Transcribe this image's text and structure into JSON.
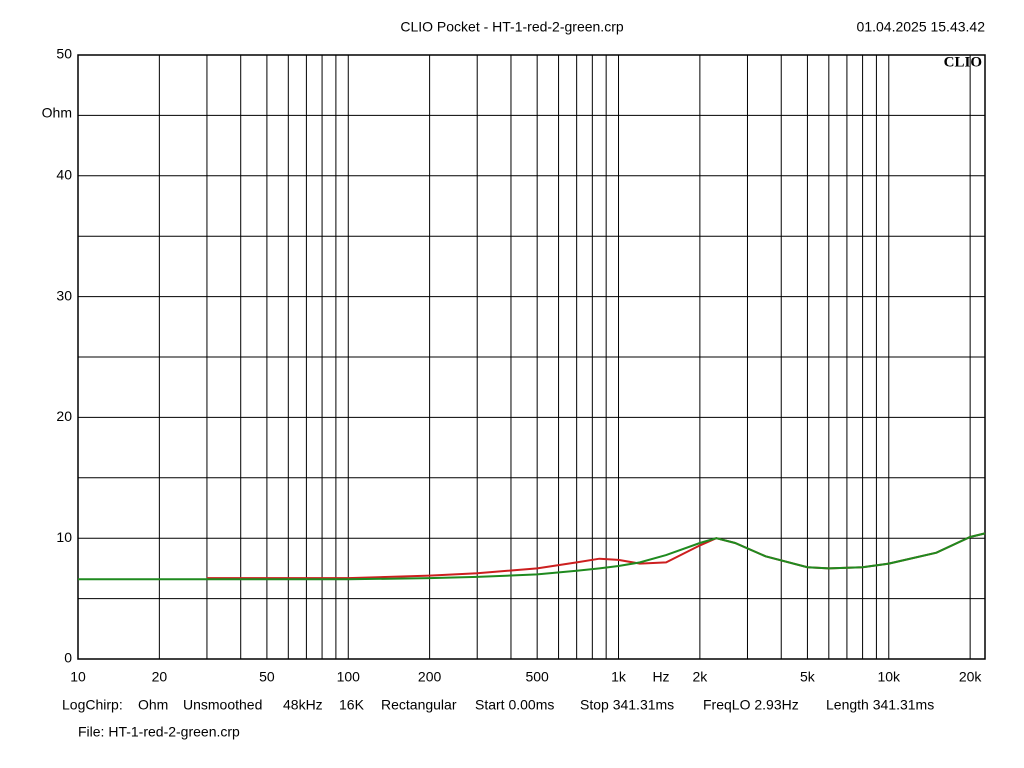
{
  "chart_data": {
    "type": "line",
    "title": "CLIO Pocket - HT-1-red-2-green.crp",
    "timestamp": "01.04.2025 15.43.42",
    "logo": "CLIO",
    "y_label": "Ohm",
    "x_unit": "Hz",
    "x_log": true,
    "grid": true,
    "xlim": [
      10,
      22700
    ],
    "ylim": [
      0,
      50
    ],
    "yticks": [
      0,
      10,
      20,
      30,
      40,
      50
    ],
    "yminor": [
      5,
      15,
      25,
      35,
      45
    ],
    "xticks": [
      10,
      20,
      50,
      100,
      200,
      500,
      {
        "value": 1000,
        "label": "1k"
      },
      {
        "value": 2000,
        "label": "2k"
      },
      {
        "value": 5000,
        "label": "5k"
      },
      {
        "value": 10000,
        "label": "10k"
      },
      {
        "value": 20000,
        "label": "20k"
      }
    ],
    "xminor": [
      30,
      40,
      60,
      70,
      80,
      90,
      300,
      400,
      600,
      700,
      800,
      900,
      3000,
      4000,
      6000,
      7000,
      8000,
      9000
    ],
    "x": [
      10,
      20,
      30,
      50,
      100,
      200,
      300,
      500,
      700,
      850,
      1000,
      1200,
      1500,
      2000,
      2300,
      2700,
      3500,
      5000,
      6000,
      8000,
      10000,
      15000,
      20000,
      22700
    ],
    "series": [
      {
        "name": "HT-1-red",
        "color": "#cc1f1f",
        "values": [
          null,
          null,
          6.7,
          6.7,
          6.7,
          6.9,
          7.1,
          7.5,
          8.0,
          8.3,
          8.2,
          7.9,
          8.0,
          9.4,
          10.0,
          9.6,
          8.5,
          7.6,
          7.5,
          7.6,
          7.9,
          8.8,
          10.1,
          10.4
        ]
      },
      {
        "name": "2-green",
        "color": "#1f8a1f",
        "values": [
          6.6,
          6.6,
          6.6,
          6.6,
          6.6,
          6.7,
          6.8,
          7.0,
          7.3,
          7.5,
          7.7,
          8.0,
          8.6,
          9.6,
          10.0,
          9.6,
          8.5,
          7.6,
          7.5,
          7.6,
          7.9,
          8.8,
          10.1,
          10.4
        ]
      }
    ],
    "footer": [
      "LogChirp:",
      "Ohm",
      "Unsmoothed",
      "48kHz",
      "16K",
      "Rectangular",
      "Start 0.00ms",
      "Stop 341.31ms",
      "FreqLO 2.93Hz",
      "Length 341.31ms"
    ],
    "file": "File: HT-1-red-2-green.crp"
  }
}
